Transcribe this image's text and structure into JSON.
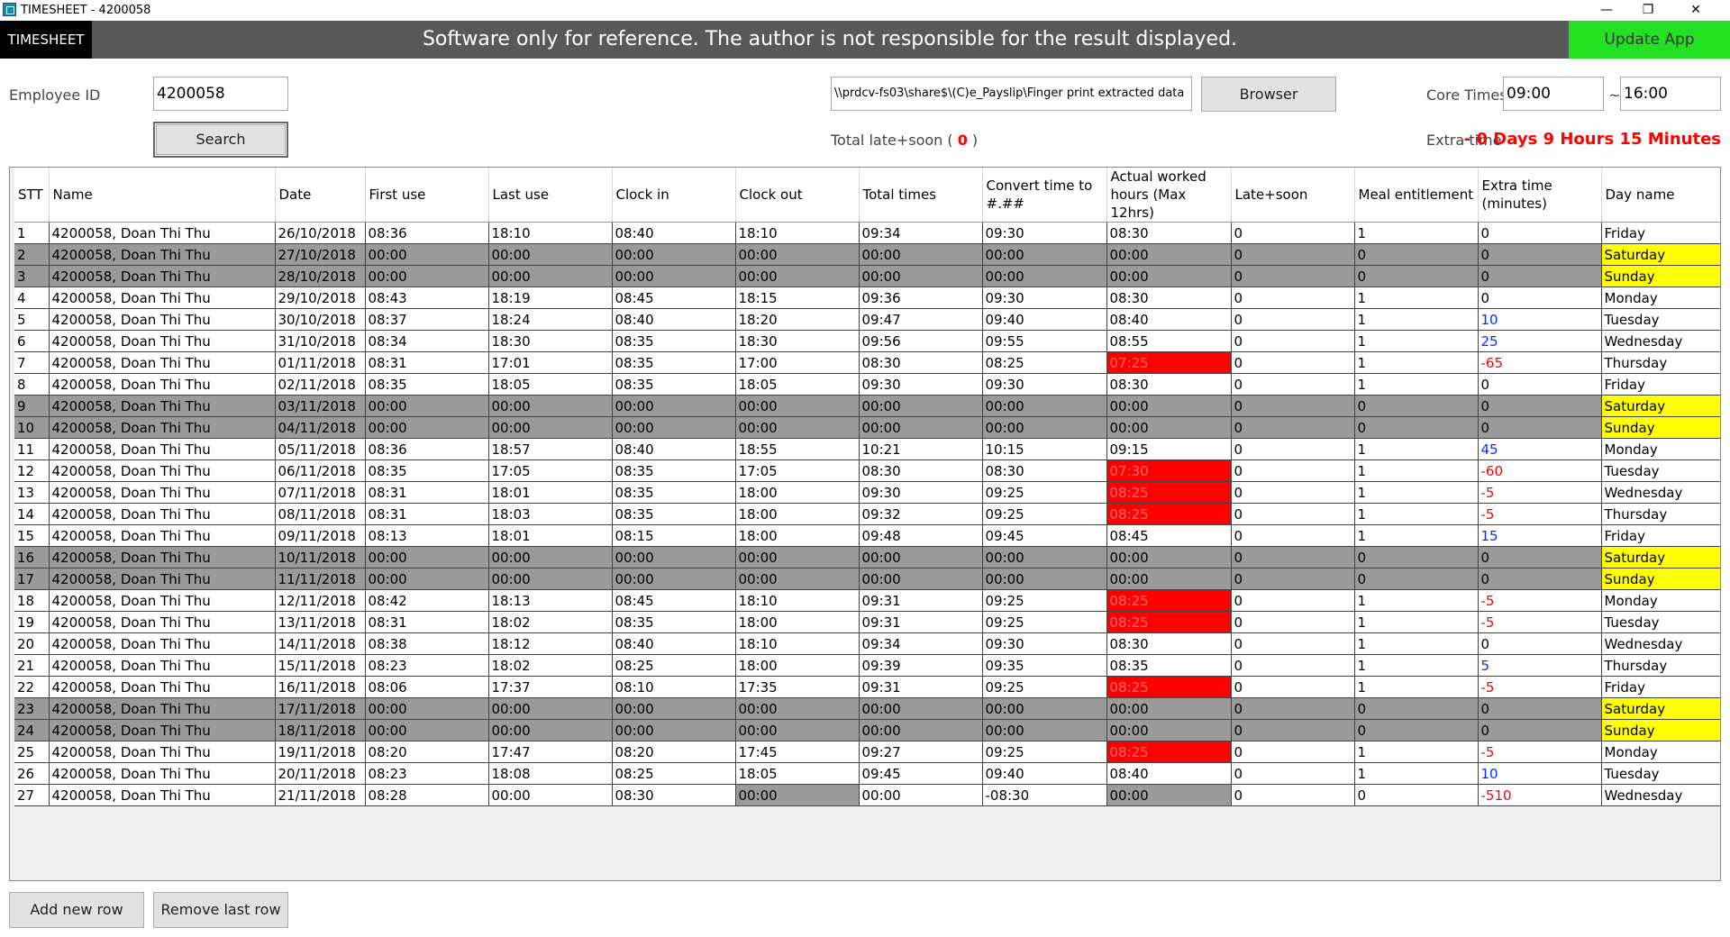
{
  "window": {
    "title": "TIMESHEET - 4200058",
    "minimize": "—",
    "restore": "❐",
    "close": "✕"
  },
  "banner": {
    "tab": "TIMESHEET",
    "message": "Software only for reference. The author is not responsible for the result displayed.",
    "update_label": "Update App"
  },
  "employee": {
    "label": "Employee ID",
    "value": "4200058",
    "search_label": "Search"
  },
  "path": {
    "value": "\\\\prdcv-fs03\\share$\\(C)e_Payslip\\Finger print extracted data",
    "browse_label": "Browser"
  },
  "summary": {
    "late_label": "Total late+soon ( ",
    "late_value": "0",
    "late_close": " )"
  },
  "core": {
    "label": "Core Times",
    "start": "09:00",
    "sep": "~",
    "end": "16:00"
  },
  "extra": {
    "label": "Extra time",
    "value": "- 0 Days 9 Hours 15 Minutes"
  },
  "colors": {
    "highlight_red": "#ff0000",
    "weekend_yellow": "#ffff00",
    "weekend_gray": "#9a9a9a",
    "positive_blue": "#0033ff",
    "update_green": "#22e022"
  },
  "table": {
    "columns": [
      "STT",
      "Name",
      "Date",
      "First use",
      "Last use",
      "Clock in",
      "Clock out",
      "Total times",
      "Convert time to #.##",
      "Actual worked hours (Max 12hrs)",
      "Late+soon",
      "Meal entitlement",
      "Extra time (minutes)",
      "Day name"
    ],
    "rows": [
      [
        "1",
        "4200058, Doan Thi Thu",
        "26/10/2018",
        "08:36",
        "18:10",
        "08:40",
        "18:10",
        "09:34",
        "09:30",
        "08:30",
        "0",
        "1",
        "0",
        "Friday"
      ],
      [
        "2",
        "4200058, Doan Thi Thu",
        "27/10/2018",
        "00:00",
        "00:00",
        "00:00",
        "00:00",
        "00:00",
        "00:00",
        "00:00",
        "0",
        "0",
        "0",
        "Saturday"
      ],
      [
        "3",
        "4200058, Doan Thi Thu",
        "28/10/2018",
        "00:00",
        "00:00",
        "00:00",
        "00:00",
        "00:00",
        "00:00",
        "00:00",
        "0",
        "0",
        "0",
        "Sunday"
      ],
      [
        "4",
        "4200058, Doan Thi Thu",
        "29/10/2018",
        "08:43",
        "18:19",
        "08:45",
        "18:15",
        "09:36",
        "09:30",
        "08:30",
        "0",
        "1",
        "0",
        "Monday"
      ],
      [
        "5",
        "4200058, Doan Thi Thu",
        "30/10/2018",
        "08:37",
        "18:24",
        "08:40",
        "18:20",
        "09:47",
        "09:40",
        "08:40",
        "0",
        "1",
        "10",
        "Tuesday"
      ],
      [
        "6",
        "4200058, Doan Thi Thu",
        "31/10/2018",
        "08:34",
        "18:30",
        "08:35",
        "18:30",
        "09:56",
        "09:55",
        "08:55",
        "0",
        "1",
        "25",
        "Wednesday"
      ],
      [
        "7",
        "4200058, Doan Thi Thu",
        "01/11/2018",
        "08:31",
        "17:01",
        "08:35",
        "17:00",
        "08:30",
        "08:25",
        "07:25",
        "0",
        "1",
        "-65",
        "Thursday"
      ],
      [
        "8",
        "4200058, Doan Thi Thu",
        "02/11/2018",
        "08:35",
        "18:05",
        "08:35",
        "18:05",
        "09:30",
        "09:30",
        "08:30",
        "0",
        "1",
        "0",
        "Friday"
      ],
      [
        "9",
        "4200058, Doan Thi Thu",
        "03/11/2018",
        "00:00",
        "00:00",
        "00:00",
        "00:00",
        "00:00",
        "00:00",
        "00:00",
        "0",
        "0",
        "0",
        "Saturday"
      ],
      [
        "10",
        "4200058, Doan Thi Thu",
        "04/11/2018",
        "00:00",
        "00:00",
        "00:00",
        "00:00",
        "00:00",
        "00:00",
        "00:00",
        "0",
        "0",
        "0",
        "Sunday"
      ],
      [
        "11",
        "4200058, Doan Thi Thu",
        "05/11/2018",
        "08:36",
        "18:57",
        "08:40",
        "18:55",
        "10:21",
        "10:15",
        "09:15",
        "0",
        "1",
        "45",
        "Monday"
      ],
      [
        "12",
        "4200058, Doan Thi Thu",
        "06/11/2018",
        "08:35",
        "17:05",
        "08:35",
        "17:05",
        "08:30",
        "08:30",
        "07:30",
        "0",
        "1",
        "-60",
        "Tuesday"
      ],
      [
        "13",
        "4200058, Doan Thi Thu",
        "07/11/2018",
        "08:31",
        "18:01",
        "08:35",
        "18:00",
        "09:30",
        "09:25",
        "08:25",
        "0",
        "1",
        "-5",
        "Wednesday"
      ],
      [
        "14",
        "4200058, Doan Thi Thu",
        "08/11/2018",
        "08:31",
        "18:03",
        "08:35",
        "18:00",
        "09:32",
        "09:25",
        "08:25",
        "0",
        "1",
        "-5",
        "Thursday"
      ],
      [
        "15",
        "4200058, Doan Thi Thu",
        "09/11/2018",
        "08:13",
        "18:01",
        "08:15",
        "18:00",
        "09:48",
        "09:45",
        "08:45",
        "0",
        "1",
        "15",
        "Friday"
      ],
      [
        "16",
        "4200058, Doan Thi Thu",
        "10/11/2018",
        "00:00",
        "00:00",
        "00:00",
        "00:00",
        "00:00",
        "00:00",
        "00:00",
        "0",
        "0",
        "0",
        "Saturday"
      ],
      [
        "17",
        "4200058, Doan Thi Thu",
        "11/11/2018",
        "00:00",
        "00:00",
        "00:00",
        "00:00",
        "00:00",
        "00:00",
        "00:00",
        "0",
        "0",
        "0",
        "Sunday"
      ],
      [
        "18",
        "4200058, Doan Thi Thu",
        "12/11/2018",
        "08:42",
        "18:13",
        "08:45",
        "18:10",
        "09:31",
        "09:25",
        "08:25",
        "0",
        "1",
        "-5",
        "Monday"
      ],
      [
        "19",
        "4200058, Doan Thi Thu",
        "13/11/2018",
        "08:31",
        "18:02",
        "08:35",
        "18:00",
        "09:31",
        "09:25",
        "08:25",
        "0",
        "1",
        "-5",
        "Tuesday"
      ],
      [
        "20",
        "4200058, Doan Thi Thu",
        "14/11/2018",
        "08:38",
        "18:12",
        "08:40",
        "18:10",
        "09:34",
        "09:30",
        "08:30",
        "0",
        "1",
        "0",
        "Wednesday"
      ],
      [
        "21",
        "4200058, Doan Thi Thu",
        "15/11/2018",
        "08:23",
        "18:02",
        "08:25",
        "18:00",
        "09:39",
        "09:35",
        "08:35",
        "0",
        "1",
        "5",
        "Thursday"
      ],
      [
        "22",
        "4200058, Doan Thi Thu",
        "16/11/2018",
        "08:06",
        "17:37",
        "08:10",
        "17:35",
        "09:31",
        "09:25",
        "08:25",
        "0",
        "1",
        "-5",
        "Friday"
      ],
      [
        "23",
        "4200058, Doan Thi Thu",
        "17/11/2018",
        "00:00",
        "00:00",
        "00:00",
        "00:00",
        "00:00",
        "00:00",
        "00:00",
        "0",
        "0",
        "0",
        "Saturday"
      ],
      [
        "24",
        "4200058, Doan Thi Thu",
        "18/11/2018",
        "00:00",
        "00:00",
        "00:00",
        "00:00",
        "00:00",
        "00:00",
        "00:00",
        "0",
        "0",
        "0",
        "Sunday"
      ],
      [
        "25",
        "4200058, Doan Thi Thu",
        "19/11/2018",
        "08:20",
        "17:47",
        "08:20",
        "17:45",
        "09:27",
        "09:25",
        "08:25",
        "0",
        "1",
        "-5",
        "Monday"
      ],
      [
        "26",
        "4200058, Doan Thi Thu",
        "20/11/2018",
        "08:23",
        "18:08",
        "08:25",
        "18:05",
        "09:45",
        "09:40",
        "08:40",
        "0",
        "1",
        "10",
        "Tuesday"
      ],
      [
        "27",
        "4200058, Doan Thi Thu",
        "21/11/2018",
        "08:28",
        "00:00",
        "08:30",
        "00:00",
        "00:00",
        "-08:30",
        "00:00",
        "0",
        "0",
        "-510",
        "Wednesday"
      ]
    ],
    "weekend_rows": [
      2,
      3,
      9,
      10,
      16,
      17,
      23,
      24
    ],
    "red_worked_rows": [
      7,
      12,
      13,
      14,
      18,
      19,
      22,
      25
    ],
    "gray_cells": [
      [
        27,
        6
      ],
      [
        27,
        9
      ]
    ]
  },
  "footer": {
    "add_row_label": "Add new row",
    "remove_row_label": "Remove last row"
  }
}
